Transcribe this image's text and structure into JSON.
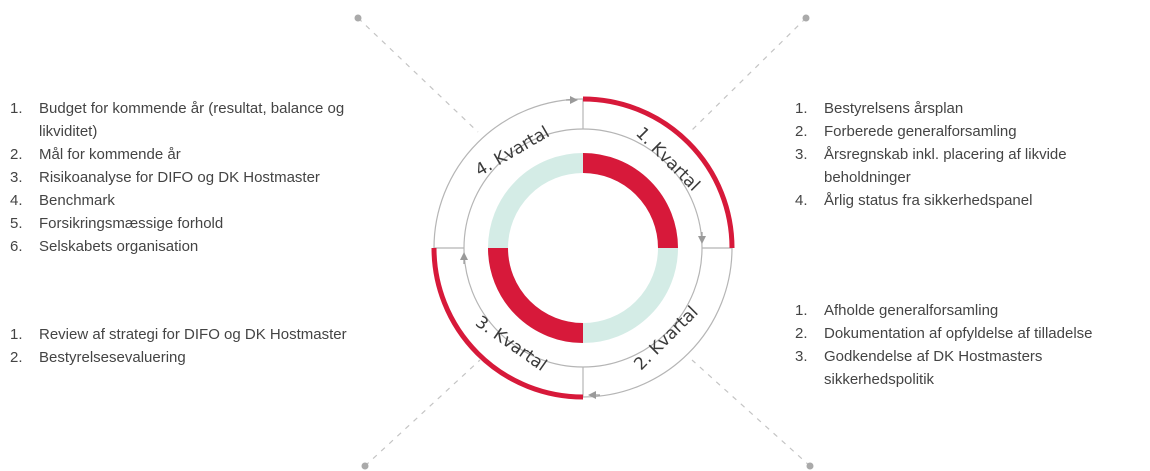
{
  "quarters": [
    {
      "id": "q1",
      "label": "1. Kvartal"
    },
    {
      "id": "q2",
      "label": "2. Kvartal"
    },
    {
      "id": "q3",
      "label": "3. Kvartal"
    },
    {
      "id": "q4",
      "label": "4. Kvartal"
    }
  ],
  "lists": {
    "q1": [
      "Bestyrelsens årsplan",
      "Forberede generalforsamling",
      "Årsregnskab inkl. placering af likvide beholdninger",
      "Årlig status fra sikkerhedspanel"
    ],
    "q2": [
      "Afholde generalforsamling",
      "Dokumentation af opfyldelse af tilladelse",
      "Godkendelse af DK Hostmasters sikkerhedspolitik"
    ],
    "q3": [
      "Review af strategi for DIFO og DK Hostmaster",
      "Bestyrelsesevaluering"
    ],
    "q4": [
      "Budget for kommende år (resultat, balance og likviditet)",
      "Mål for kommende år",
      "Risikoanalyse for DIFO og DK Hostmaster",
      "Benchmark",
      "Forsikringsmæssige forhold",
      "Selskabets organisation"
    ]
  },
  "colors": {
    "accent_red": "#d7193a",
    "teal_light": "#d4ece6",
    "ring_gray": "#b5b5b5",
    "connector_gray": "#c4c4c4",
    "text": "#444444"
  }
}
